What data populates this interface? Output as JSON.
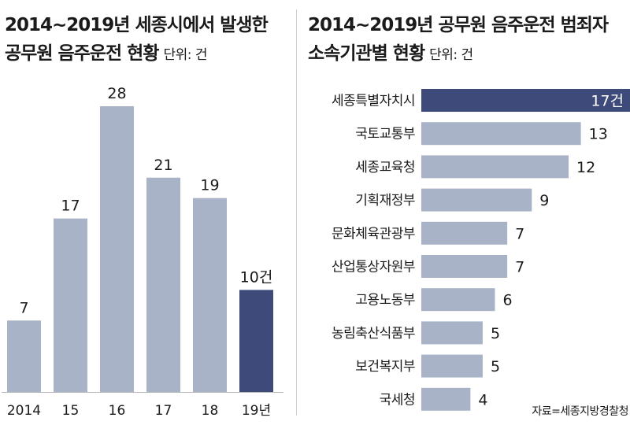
{
  "colors": {
    "bar": "#a9b3c8",
    "highlight": "#3d4a7a",
    "text": "#1a1a1a",
    "highlight_text": "#ffffff",
    "axis": "#b5b5b5"
  },
  "left": {
    "title_line1": "2014~2019년 세종시에서 발생한",
    "title_line2": "공무원 음주운전 현황",
    "unit": "단위: 건"
  },
  "right": {
    "title_line1": "2014~2019년 공무원 음주운전 범죄자",
    "title_line2": "소속기관별 현황",
    "unit": "단위: 건"
  },
  "source": "자료=세종지방경찰청",
  "chart_data": [
    {
      "type": "bar",
      "orientation": "vertical",
      "title": "2014~2019년 세종시에서 발생한 공무원 음주운전 현황",
      "unit": "단위: 건",
      "categories": [
        "2014",
        "15",
        "16",
        "17",
        "18",
        "19년"
      ],
      "values": [
        7,
        17,
        28,
        21,
        19,
        10
      ],
      "value_labels": [
        "7",
        "17",
        "28",
        "21",
        "19",
        "10건"
      ],
      "highlight_index": 5,
      "ylim": [
        0,
        30
      ],
      "grid": false
    },
    {
      "type": "bar",
      "orientation": "horizontal",
      "title": "2014~2019년 공무원 음주운전 범죄자 소속기관별 현황",
      "unit": "단위: 건",
      "categories": [
        "세종특별자치시",
        "국토교통부",
        "세종교육청",
        "기획재정부",
        "문화체육관광부",
        "산업통상자원부",
        "고용노동부",
        "농림축산식품부",
        "보건복지부",
        "국세청"
      ],
      "values": [
        17,
        13,
        12,
        9,
        7,
        7,
        6,
        5,
        5,
        4
      ],
      "value_labels": [
        "17건",
        "13",
        "12",
        "9",
        "7",
        "7",
        "6",
        "5",
        "5",
        "4"
      ],
      "highlight_index": 0,
      "xlim": [
        0,
        17
      ],
      "grid": false
    }
  ]
}
